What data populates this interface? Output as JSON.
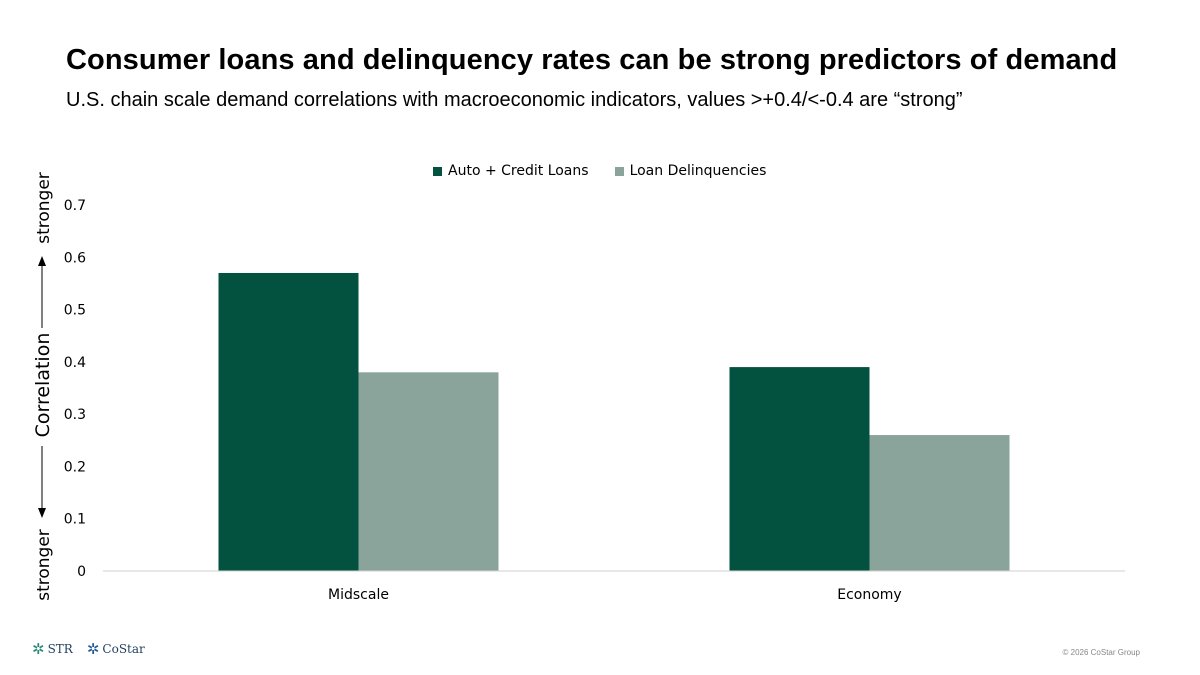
{
  "title": "Consumer loans and delinquency rates can be strong predictors of demand",
  "subtitle": "U.S. chain scale demand correlations with macroeconomic indicators, values >+0.4/<-0.4 are “strong”",
  "colors": {
    "auto_credit": "#03513F",
    "delinquencies": "#8AA49B",
    "axis": "#D0D0D0"
  },
  "chart_data": {
    "type": "bar",
    "categories": [
      "Midscale",
      "Economy"
    ],
    "series": [
      {
        "name": "Auto + Credit Loans",
        "values": [
          0.57,
          0.39
        ],
        "color": "#03513F"
      },
      {
        "name": "Loan Delinquencies",
        "values": [
          0.38,
          0.26
        ],
        "color": "#8AA49B"
      }
    ],
    "ylim": [
      0,
      0.7
    ],
    "yticks": [
      "0",
      "0.1",
      "0.2",
      "0.3",
      "0.4",
      "0.5",
      "0.6",
      "0.7"
    ],
    "ylabel": {
      "top": "stronger",
      "middle": "Correlation",
      "bottom": "stronger"
    },
    "legend_position": "top-center",
    "grid": false
  },
  "footer": {
    "logo_str": "STR",
    "logo_costar": "CoStar",
    "copyright": "© 2026 CoStar Group"
  }
}
